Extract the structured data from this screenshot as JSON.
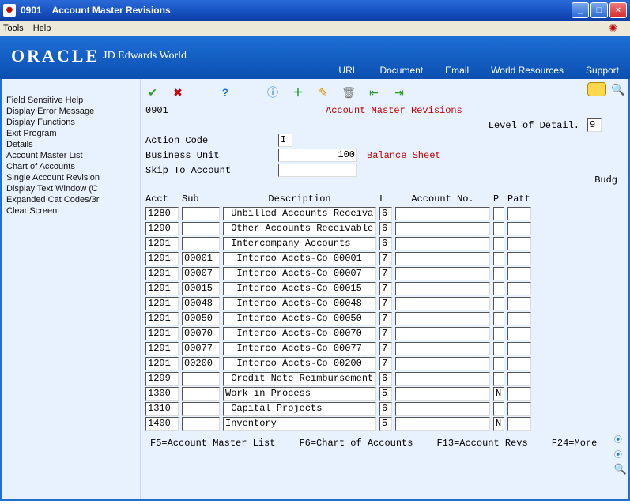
{
  "window": {
    "code": "0901",
    "title": "Account Master Revisions"
  },
  "menu": {
    "tools": "Tools",
    "help": "Help"
  },
  "brand": {
    "logo": "ORACLE",
    "sublogo": "JD Edwards World",
    "links": {
      "url": "URL",
      "document": "Document",
      "email": "Email",
      "wr": "World Resources",
      "support": "Support"
    }
  },
  "sidebar": [
    "Field Sensitive Help",
    "Display Error Message",
    "Display Functions",
    "Exit Program",
    "Details",
    "Account Master List",
    "Chart of Accounts",
    "Single Account Revision",
    "Display Text Window (C",
    "Expanded Cat Codes/3r",
    "Clear Screen"
  ],
  "form": {
    "code": "0901",
    "title": "Account Master Revisions",
    "lod_label": "Level of Detail.",
    "lod_value": "9",
    "action_label": "Action Code",
    "action_value": "I",
    "bu_label": "Business Unit",
    "bu_value": "100",
    "bu_desc": "Balance Sheet",
    "skip_label": "Skip To Account",
    "skip_value": ""
  },
  "columns": {
    "acct": "Acct",
    "sub": "Sub",
    "desc": "Description",
    "l": "L",
    "acctno": "Account No.",
    "p": "P",
    "budg": "Budg",
    "patt": "Patt"
  },
  "rows": [
    {
      "acct": "1280",
      "sub": "",
      "desc": " Unbilled Accounts Receiva",
      "l": "6",
      "acctno": "",
      "p": "",
      "patt": ""
    },
    {
      "acct": "1290",
      "sub": "",
      "desc": " Other Accounts Receivable",
      "l": "6",
      "acctno": "",
      "p": "",
      "patt": ""
    },
    {
      "acct": "1291",
      "sub": "",
      "desc": " Intercompany Accounts",
      "l": "6",
      "acctno": "",
      "p": "",
      "patt": ""
    },
    {
      "acct": "1291",
      "sub": "00001",
      "desc": "  Interco Accts-Co 00001",
      "l": "7",
      "acctno": "",
      "p": "",
      "patt": ""
    },
    {
      "acct": "1291",
      "sub": "00007",
      "desc": "  Interco Accts-Co 00007",
      "l": "7",
      "acctno": "",
      "p": "",
      "patt": ""
    },
    {
      "acct": "1291",
      "sub": "00015",
      "desc": "  Interco Accts-Co 00015",
      "l": "7",
      "acctno": "",
      "p": "",
      "patt": ""
    },
    {
      "acct": "1291",
      "sub": "00048",
      "desc": "  Interco Accts-Co 00048",
      "l": "7",
      "acctno": "",
      "p": "",
      "patt": ""
    },
    {
      "acct": "1291",
      "sub": "00050",
      "desc": "  Interco Accts-Co 00050",
      "l": "7",
      "acctno": "",
      "p": "",
      "patt": ""
    },
    {
      "acct": "1291",
      "sub": "00070",
      "desc": "  Interco Accts-Co 00070",
      "l": "7",
      "acctno": "",
      "p": "",
      "patt": ""
    },
    {
      "acct": "1291",
      "sub": "00077",
      "desc": "  Interco Accts-Co 00077",
      "l": "7",
      "acctno": "",
      "p": "",
      "patt": ""
    },
    {
      "acct": "1291",
      "sub": "00200",
      "desc": "  Interco Accts-Co 00200",
      "l": "7",
      "acctno": "",
      "p": "",
      "patt": ""
    },
    {
      "acct": "1299",
      "sub": "",
      "desc": " Credit Note Reimbursement",
      "l": "6",
      "acctno": "",
      "p": "",
      "patt": ""
    },
    {
      "acct": "1300",
      "sub": "",
      "desc": "Work in Process",
      "l": "5",
      "acctno": "",
      "p": "N",
      "patt": ""
    },
    {
      "acct": "1310",
      "sub": "",
      "desc": " Capital Projects",
      "l": "6",
      "acctno": "",
      "p": "",
      "patt": ""
    },
    {
      "acct": "1400",
      "sub": "",
      "desc": "Inventory",
      "l": "5",
      "acctno": "",
      "p": "N",
      "patt": ""
    }
  ],
  "fkeys": {
    "f5": "F5=Account Master List",
    "f6": "F6=Chart of Accounts",
    "f13": "F13=Account Revs",
    "f24": "F24=More"
  }
}
